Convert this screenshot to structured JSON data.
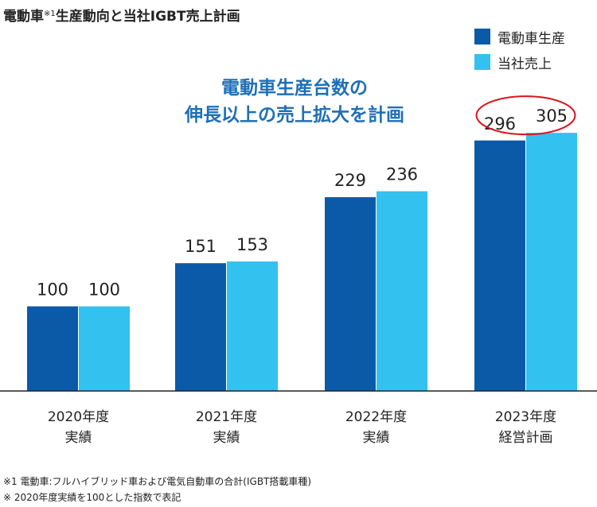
{
  "title": {
    "main_prefix": "電動車",
    "note_mark": "※1",
    "main_suffix": "生産動向と当社IGBT売上計画"
  },
  "callout": {
    "line1": "電動車生産台数の",
    "line2": "伸長以上の売上拡大を計画"
  },
  "footnotes": [
    "※1 電動車:フルハイブリッド車および電気自動車の合計(IGBT搭載車種)",
    "※ 2020年度実績を100とした指数で表記"
  ],
  "colors": {
    "series_production": "#0a5aa8",
    "series_sales": "#33c1ef",
    "callout_text": "#1f6fb6",
    "highlight_ring": "#d9141e",
    "axis": "#222222"
  },
  "chart_data": {
    "type": "bar",
    "categories": [
      [
        "2020年度",
        "実績"
      ],
      [
        "2021年度",
        "実績"
      ],
      [
        "2022年度",
        "実績"
      ],
      [
        "2023年度",
        "経営計画"
      ]
    ],
    "series": [
      {
        "name": "電動車生産",
        "values": [
          100,
          151,
          229,
          296
        ]
      },
      {
        "name": "当社売上",
        "values": [
          100,
          153,
          236,
          305
        ]
      }
    ],
    "data_labels": true,
    "highlight_category_index": 3,
    "ylim": [
      0,
      350
    ],
    "grid": false,
    "legend_position": "top-right"
  }
}
